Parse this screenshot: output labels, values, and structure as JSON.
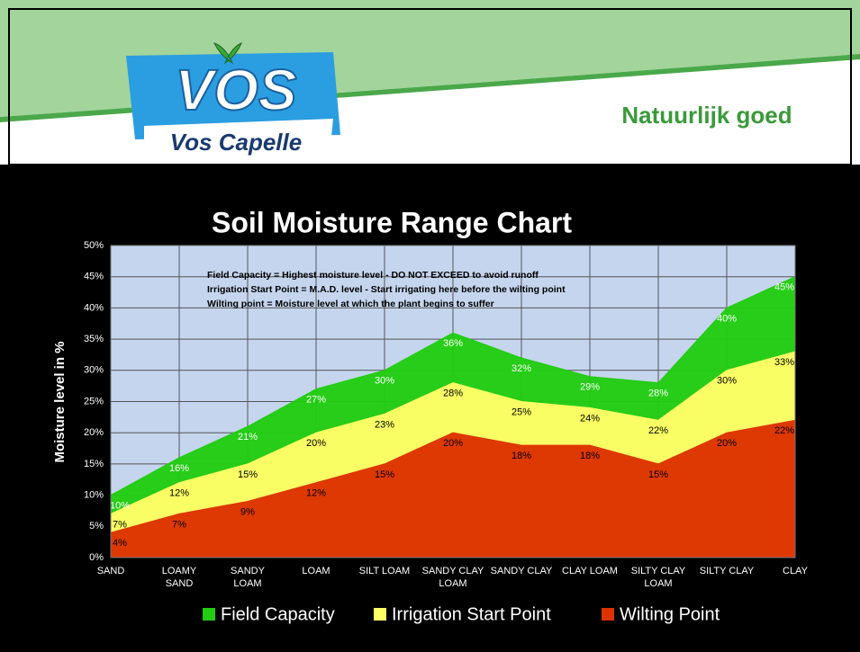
{
  "header": {
    "logo_text": "VOS",
    "brand": "Vos Capelle",
    "slogan": "Natuurlijk goed"
  },
  "chart_data": {
    "type": "area",
    "title": "Soil Moisture Range Chart",
    "y_label": "Moisture level in %",
    "annotations": [
      "Field Capacity = Highest moisture level - DO NOT EXCEED to avoid runoff",
      "Irrigation Start Point = M.A.D. level - Start irrigating here before the wilting point",
      "Wilting point = Moisture level at which the plant begins to suffer"
    ],
    "categories": [
      "SAND",
      "LOAMY SAND",
      "SANDY LOAM",
      "LOAM",
      "SILT LOAM",
      "SANDY CLAY LOAM",
      "SANDY CLAY",
      "CLAY LOAM",
      "SILTY CLAY LOAM",
      "SILTY CLAY",
      "CLAY"
    ],
    "series": [
      {
        "name": "Field Capacity",
        "color": "#22cc11",
        "values": [
          10,
          16,
          21,
          27,
          30,
          36,
          32,
          29,
          28,
          40,
          45
        ],
        "value_labels": [
          "10%",
          "16%",
          "21%",
          "27%",
          "30%",
          "36%",
          "32%",
          "29%",
          "28%",
          "40%",
          "45%"
        ]
      },
      {
        "name": "Irrigation Start Point",
        "color": "#ffff66",
        "values": [
          7,
          12,
          15,
          20,
          23,
          28,
          25,
          24,
          22,
          30,
          33
        ],
        "value_labels": [
          "7%",
          "12%",
          "15%",
          "20%",
          "23%",
          "28%",
          "25%",
          "24%",
          "22%",
          "30%",
          "33%"
        ]
      },
      {
        "name": "Wilting Point",
        "color": "#dd3300",
        "values": [
          4,
          7,
          9,
          12,
          15,
          20,
          18,
          18,
          15,
          20,
          22
        ],
        "value_labels": [
          "4%",
          "7%",
          "9%",
          "12%",
          "15%",
          "20%",
          "18%",
          "18%",
          "15%",
          "20%",
          "22%"
        ]
      }
    ],
    "ylim": [
      0,
      50
    ],
    "yticks": [
      {
        "value": 0,
        "label": "0%"
      },
      {
        "value": 5,
        "label": "5%"
      },
      {
        "value": 10,
        "label": "10%"
      },
      {
        "value": 15,
        "label": "15%"
      },
      {
        "value": 20,
        "label": "20%"
      },
      {
        "value": 25,
        "label": "25%"
      },
      {
        "value": 30,
        "label": "30%"
      },
      {
        "value": 35,
        "label": "35%"
      },
      {
        "value": 40,
        "label": "40%"
      },
      {
        "value": 45,
        "label": "45%"
      },
      {
        "value": 50,
        "label": "50%"
      }
    ],
    "grid": true,
    "background": "#c5d5ee"
  }
}
